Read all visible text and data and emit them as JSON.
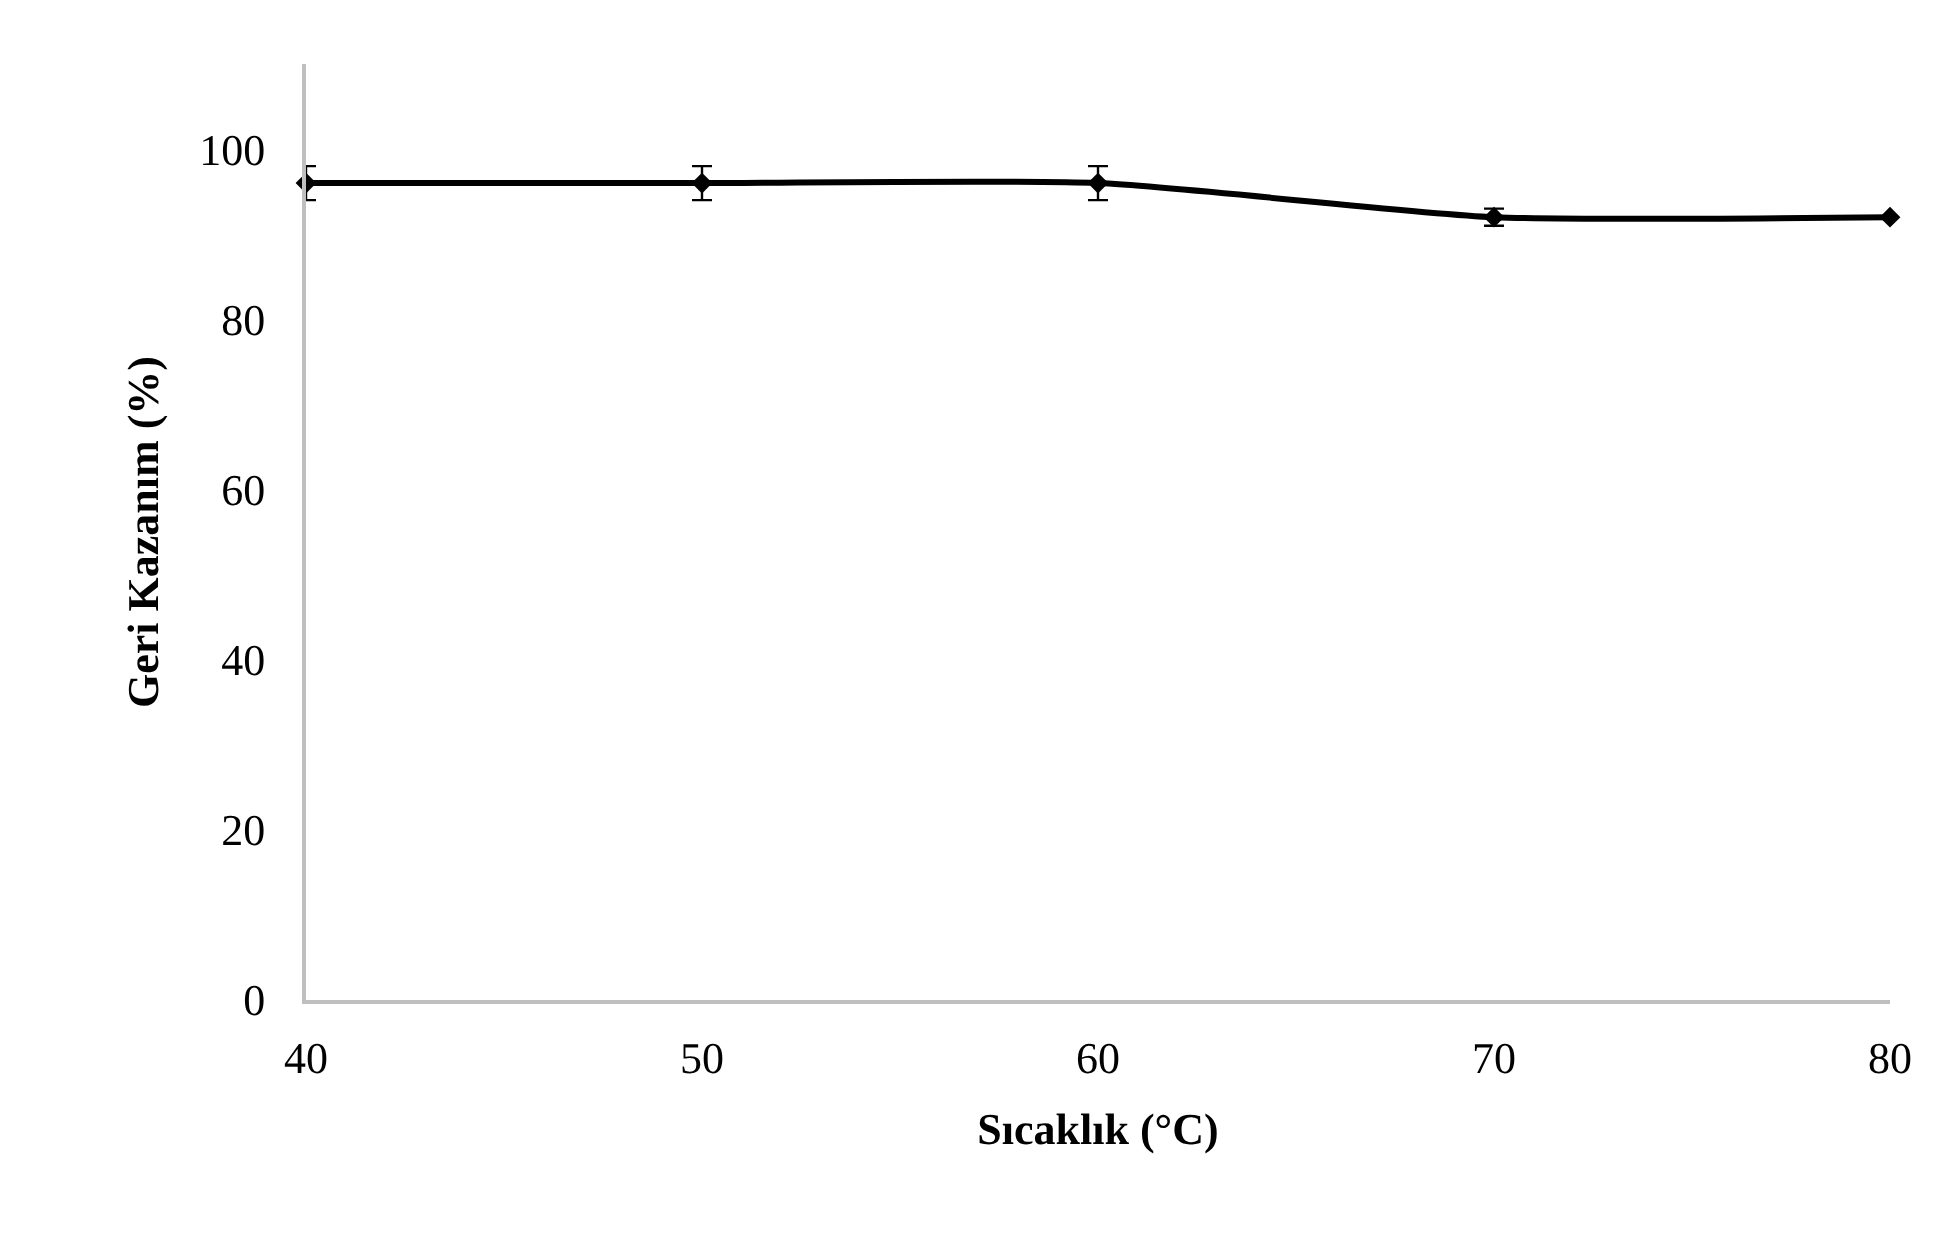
{
  "chart_data": {
    "type": "line",
    "xlabel": "Sıcaklık (°C)",
    "ylabel": "Geri Kazanım (%)",
    "x": [
      40,
      50,
      60,
      70,
      80
    ],
    "series": [
      {
        "color": "#000000",
        "values": [
          96,
          96,
          96,
          92,
          92
        ],
        "errors": [
          2,
          2,
          2,
          1,
          null
        ]
      }
    ],
    "xlim": [
      40,
      80
    ],
    "xticks": [
      40,
      50,
      60,
      70,
      80
    ],
    "ylim": [
      0,
      110
    ],
    "yticks": [
      0,
      20,
      40,
      60,
      80,
      100
    ],
    "grid": false,
    "marker": "diamond",
    "line_style": "solid"
  }
}
